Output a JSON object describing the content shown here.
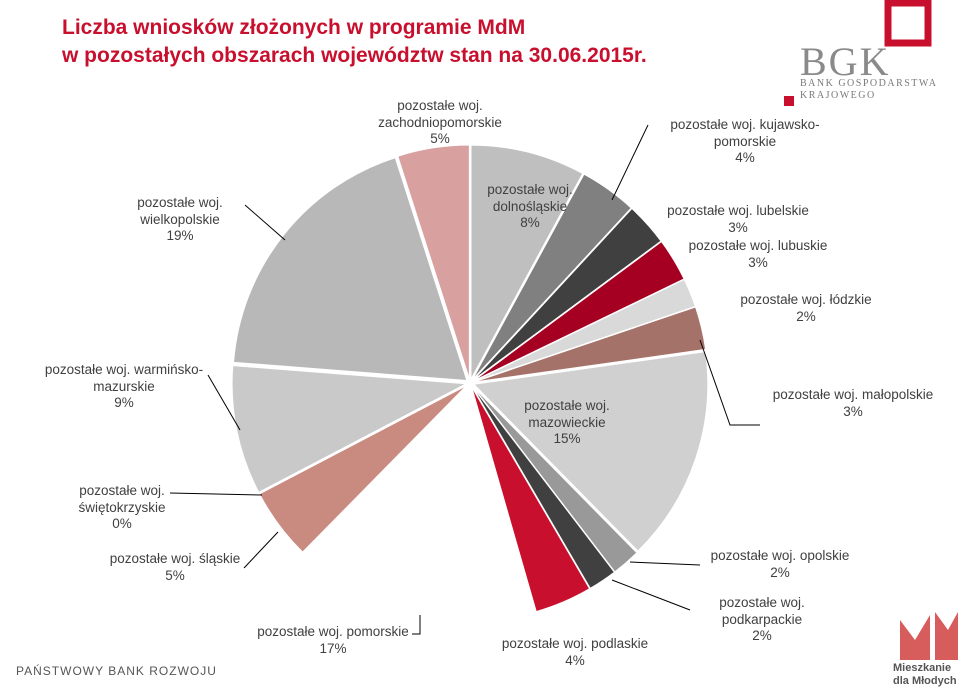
{
  "chart_data": {
    "type": "pie",
    "title": "Liczba wniosków złożonych w programie MdM\nw pozostałych obszarach województw stan na 30.06.2015r.",
    "categories": [
      "pozostałe woj.\ndolnośląskie",
      "pozostałe woj. kujawsko-\npomorskie",
      "pozostałe woj. lubelskie",
      "pozostałe woj. lubuskie",
      "pozostałe woj. łódzkie",
      "pozostałe woj. małopolskie",
      "pozostałe woj.\nmazowieckie",
      "pozostałe woj. opolskie",
      "pozostałe woj.\npodkarpackie",
      "pozostałe woj. podlaskie",
      "pozostałe woj. pomorskie",
      "pozostałe woj. śląskie",
      "pozostałe woj.\nświętokrzyskie",
      "pozostałe woj. warmińsko-\nmazurskie",
      "pozostałe woj.\nwielkopolskie",
      "pozostałe woj.\nzachodniopomorskie"
    ],
    "values": [
      8,
      4,
      3,
      3,
      2,
      3,
      15,
      2,
      2,
      4,
      17,
      5,
      0,
      9,
      19,
      5
    ],
    "value_labels": [
      "8%",
      "4%",
      "3%",
      "3%",
      "2%",
      "3%",
      "15%",
      "2%",
      "2%",
      "4%",
      "17%",
      "5%",
      "0%",
      "9%",
      "19%",
      "5%"
    ],
    "colors": [
      "#bfbfbf",
      "#808080",
      "#404040",
      "#a50021",
      "#d9d9d9",
      "#a5726a",
      "#d0d0d0",
      "#999999",
      "#404040",
      "#c8102e",
      "#ffffff",
      "#c98a80",
      "#bbbbbb",
      "#c9c9c9",
      "#b8b8b8",
      "#d9a0a0"
    ]
  },
  "logo": {
    "name": "BGK",
    "subtitle": "BANK GOSPODARSTWA\nKRAJOWEGO"
  },
  "footer": "PAŃSTWOWY BANK ROZWOJU",
  "badge": "Mieszkanie\ndla Młodych"
}
